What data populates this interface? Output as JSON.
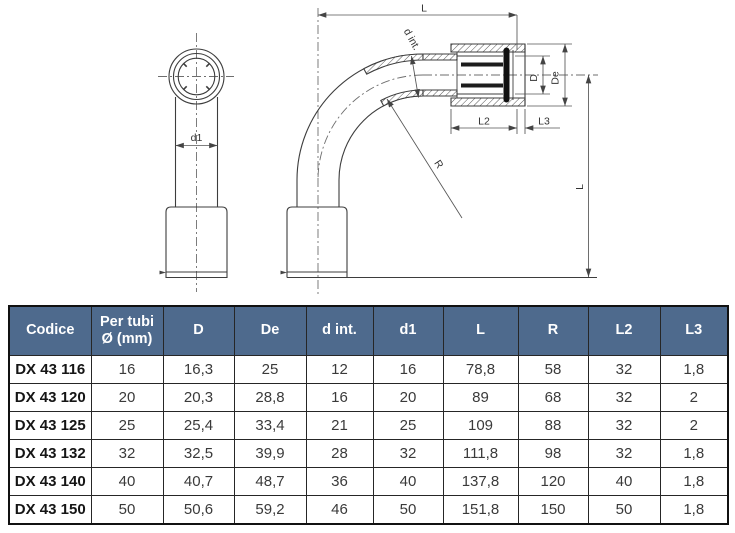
{
  "colors": {
    "header_bg": "#4e6a8d",
    "header_text": "#ffffff",
    "line": "#3d3d3d",
    "text": "#3a3a3a",
    "code_text": "#151515"
  },
  "drawing": {
    "labels": {
      "d1": "d1",
      "top_length": "L",
      "right_length": "L",
      "inner_diameter": "d int.",
      "bore_diameter": "D",
      "outer_diameter": "De",
      "socket_depth": "L2",
      "lip": "L3",
      "radius": "R"
    }
  },
  "table": {
    "headers": [
      "Codice",
      "Per tubi Ø (mm)",
      "D",
      "De",
      "d int.",
      "d1",
      "L",
      "R",
      "L2",
      "L3"
    ],
    "rows": [
      {
        "codice": "DX 43 116",
        "values": [
          "16",
          "16,3",
          "25",
          "12",
          "16",
          "78,8",
          "58",
          "32",
          "1,8"
        ]
      },
      {
        "codice": "DX 43 120",
        "values": [
          "20",
          "20,3",
          "28,8",
          "16",
          "20",
          "89",
          "68",
          "32",
          "2"
        ]
      },
      {
        "codice": "DX 43 125",
        "values": [
          "25",
          "25,4",
          "33,4",
          "21",
          "25",
          "109",
          "88",
          "32",
          "2"
        ]
      },
      {
        "codice": "DX 43 132",
        "values": [
          "32",
          "32,5",
          "39,9",
          "28",
          "32",
          "111,8",
          "98",
          "32",
          "1,8"
        ]
      },
      {
        "codice": "DX 43 140",
        "values": [
          "40",
          "40,7",
          "48,7",
          "36",
          "40",
          "137,8",
          "120",
          "40",
          "1,8"
        ]
      },
      {
        "codice": "DX 43 150",
        "values": [
          "50",
          "50,6",
          "59,2",
          "46",
          "50",
          "151,8",
          "150",
          "50",
          "1,8"
        ]
      }
    ]
  }
}
